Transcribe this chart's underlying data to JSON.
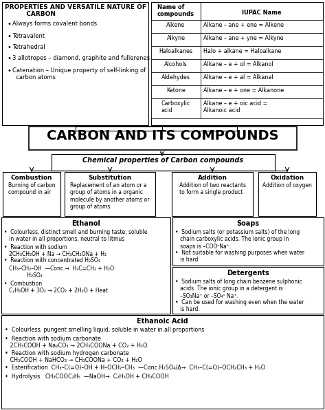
{
  "title": "CARBON AND ITS COMPOUNDS",
  "bg_color": "#ffffff",
  "fig_width": 4.73,
  "fig_height": 5.96,
  "properties_title": "PROPERTIES AND VERSATILE NATURE OF\n          CARBON",
  "properties_bullets": [
    "Always forms covalent bonds",
    "Tetravalent",
    "Tetrahedral",
    "3 allotropes – diamond, graphite and fullerenes",
    "Catenation – Unique property of self-linking of\n  carbon atoms"
  ],
  "iupac_headers": [
    "Name of\ncompounds",
    "IUPAC Name"
  ],
  "iupac_rows": [
    [
      "Alkene",
      "Alkane – ane + ene = Alkene"
    ],
    [
      "Alkyne",
      "Alkane – ane + yne = Alkyne"
    ],
    [
      "Haloalkanes",
      "Halo + alkane = Haloalkane"
    ],
    [
      "Alcohols",
      "Alkane – e + ol = Alkanol"
    ],
    [
      "Aldehydes",
      "Alkane – e + al = Alkanal"
    ],
    [
      "Ketone",
      "Alkane – e + one = Alkanone"
    ],
    [
      "Carboxylic\nacid",
      "Alkane – e + oic acid =\nAlkanoic acid"
    ]
  ],
  "chem_props": "Chemical properties of Carbon compounds",
  "combustion_title": "Combustion",
  "combustion_text": "Burning of carbon\ncompound in air",
  "substitution_title": "Substitution",
  "substitution_text": "Replacement of an atom or a\ngroup of atoms in a organic\nmolecule by another atoms or\ngroup of atoms",
  "addition_title": "Addition",
  "addition_text": "Addition of two reactants\nto form a single product",
  "oxidation_title": "Oxidation",
  "oxidation_text": "Addition of oxygen",
  "ethanol_title": "Ethanol",
  "ethanol_lines": [
    "•  Colourless, distinct smell and burning taste, soluble\n   in water in all proportions, neutral to litmus",
    "•  Reaction with sodium\n   2CH₃CH₂OH + Na → CH₃CH₂ONa + H₂",
    "•  Reaction with concentrated H₂SO₄",
    "   CH₃–CH₂–OH —Conc.→ H₂C=CH₂ + H₂O\n   H₂SO₄",
    "•  Combustion\n   C₂H₅OH + 3O₂ → 2CO₂ + 2H₂O + Heat"
  ],
  "soaps_title": "Soaps",
  "soaps_lines": [
    "•  Sodium salts (or potassium salts) of the long\n   chain carboxylic acids. The ionic group in\n   soaps is –COOⁿNa⁺.",
    "•  Not suitable for washing purposes when water\n   is hard."
  ],
  "detergents_title": "Detergents",
  "detergents_lines": [
    "•  Sodium salts of long chain benzene sulphonic\n   acids. The ionic group in a detergent is\n   –SO₃Na⁺ or –SO₄ⁿ Na⁺.",
    "•  Can be used for washing even when the water\n   is hard."
  ],
  "ethanoic_title": "Ethanoic Acid",
  "ethanoic_lines": [
    "•  Colourless, pungent smelling liquid, soluble in water in all proportions",
    "•  Reaction with sodium carbonate\n   2CH₃COOH + Na₂CO₃ → 2CH₃COONa + CO₂ + H₂O",
    "•  Reaction with sodium hydrogen carbonate\n   CH₃COOH + NaHCO₃ → CH₃COONa + CO₂ + H₂O",
    "•  Esterification  CH₃–C(=O)–OH + H–OCH₂–CH₃  —Conc.H₂SO₄/Δ→  CH₃–C(=O)–OCH₂CH₃ + H₂O",
    "•  Hydrolysis   CH₃COOC₂H₅  —NaOH→  C₂H₅OH + CH₃COOH"
  ]
}
